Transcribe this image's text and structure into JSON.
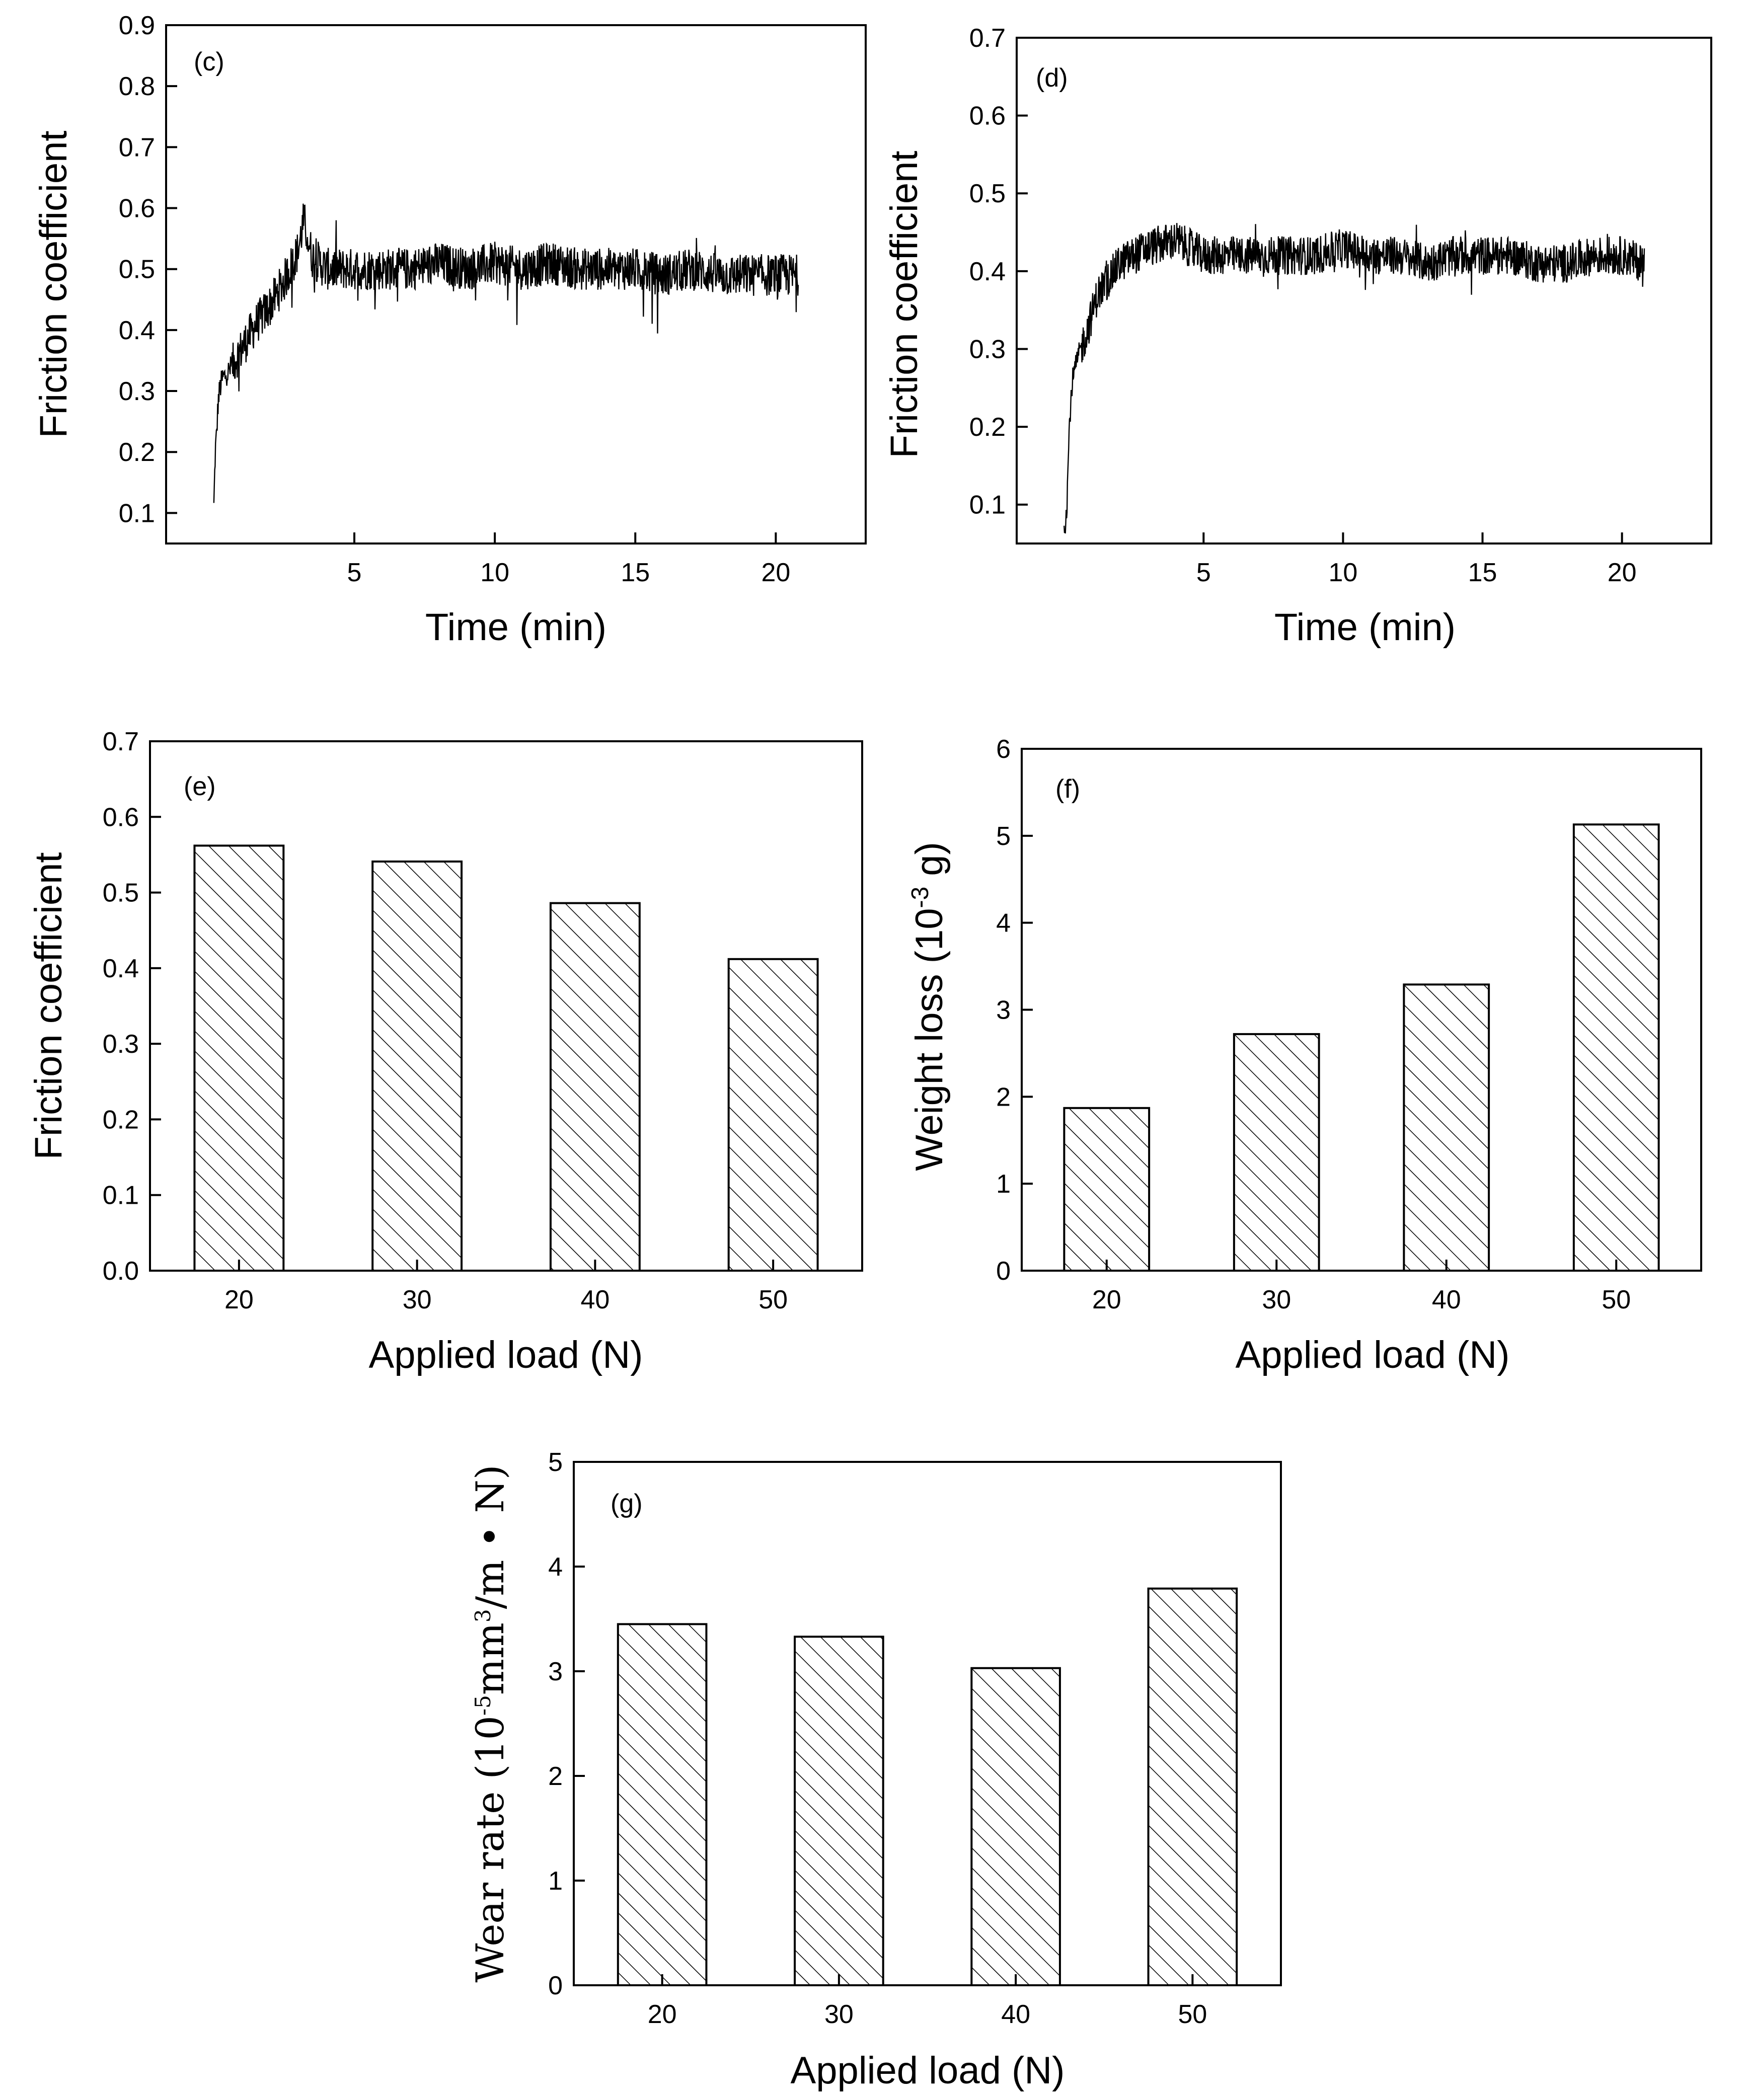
{
  "chart_data": [
    {
      "id": "c",
      "panel_label": "(c)",
      "type": "line",
      "xlabel": "Time (min)",
      "ylabel": "Friction coefficient",
      "xlim": [
        -1.7,
        23.2
      ],
      "ylim": [
        0.05,
        0.9
      ],
      "xticks": [
        5,
        10,
        15,
        20
      ],
      "yticks": [
        0.1,
        0.2,
        0.3,
        0.4,
        0.5,
        0.6,
        0.7,
        0.8,
        0.9
      ],
      "ytick_labels": [
        "0.1",
        "0.2",
        "0.3",
        "0.4",
        "0.5",
        "0.6",
        "0.7",
        "0.8",
        "0.9"
      ],
      "series": [
        {
          "name": "friction coefficient",
          "x": [
            0,
            0.05,
            0.1,
            0.15,
            0.2,
            0.3,
            0.5,
            1,
            1.5,
            2,
            2.5,
            3,
            3.2,
            3.5,
            4,
            5,
            6,
            7,
            8,
            9,
            10,
            11,
            12,
            13,
            14,
            15,
            16,
            17,
            18,
            19,
            20,
            20.8
          ],
          "y": [
            0.11,
            0.2,
            0.23,
            0.28,
            0.3,
            0.32,
            0.33,
            0.37,
            0.41,
            0.44,
            0.48,
            0.53,
            0.58,
            0.52,
            0.5,
            0.5,
            0.5,
            0.5,
            0.51,
            0.5,
            0.51,
            0.5,
            0.51,
            0.5,
            0.5,
            0.5,
            0.49,
            0.5,
            0.49,
            0.49,
            0.49,
            0.49
          ],
          "noise": 0.035
        }
      ]
    },
    {
      "id": "d",
      "panel_label": "(d)",
      "type": "line",
      "xlabel": "Time (min)",
      "ylabel": "Friction coefficient",
      "xlim": [
        -1.7,
        23.2
      ],
      "ylim": [
        0.05,
        0.7
      ],
      "xticks": [
        5,
        10,
        15,
        20
      ],
      "yticks": [
        0.1,
        0.2,
        0.3,
        0.4,
        0.5,
        0.6,
        0.7
      ],
      "ytick_labels": [
        "0.1",
        "0.2",
        "0.3",
        "0.4",
        "0.5",
        "0.6",
        "0.7"
      ],
      "series": [
        {
          "name": "friction coefficient",
          "x": [
            0,
            0.1,
            0.15,
            0.2,
            0.3,
            0.5,
            0.8,
            1.2,
            2,
            3,
            4,
            5,
            6,
            7,
            8,
            9,
            10,
            11,
            12,
            13,
            14,
            15,
            16,
            17,
            18,
            19,
            20,
            20.8
          ],
          "y": [
            0.06,
            0.1,
            0.16,
            0.21,
            0.26,
            0.29,
            0.32,
            0.37,
            0.41,
            0.43,
            0.44,
            0.42,
            0.42,
            0.42,
            0.42,
            0.42,
            0.43,
            0.42,
            0.42,
            0.41,
            0.42,
            0.42,
            0.42,
            0.41,
            0.41,
            0.42,
            0.42,
            0.41
          ],
          "noise": 0.025
        }
      ]
    },
    {
      "id": "e",
      "panel_label": "(e)",
      "type": "bar",
      "xlabel": "Applied load (N)",
      "ylabel": "Friction coefficient",
      "categories": [
        "20",
        "30",
        "40",
        "50"
      ],
      "values": [
        0.562,
        0.541,
        0.486,
        0.412
      ],
      "ylim": [
        0,
        0.7
      ],
      "yticks": [
        0,
        0.1,
        0.2,
        0.3,
        0.4,
        0.5,
        0.6,
        0.7
      ],
      "ytick_labels": [
        "0.0",
        "0.1",
        "0.2",
        "0.3",
        "0.4",
        "0.5",
        "0.6",
        "0.7"
      ]
    },
    {
      "id": "f",
      "panel_label": "(f)",
      "type": "bar",
      "xlabel": "Applied load (N)",
      "ylabel": "Weight loss (10",
      "ylabel_sup": "-3",
      "ylabel_end": " g)",
      "categories": [
        "20",
        "30",
        "40",
        "50"
      ],
      "values": [
        1.87,
        2.72,
        3.29,
        5.13
      ],
      "ylim": [
        0,
        6
      ],
      "yticks": [
        0,
        1,
        2,
        3,
        4,
        5,
        6
      ],
      "ytick_labels": [
        "0",
        "1",
        "2",
        "3",
        "4",
        "5",
        "6"
      ]
    },
    {
      "id": "g",
      "panel_label": "(g)",
      "type": "bar",
      "xlabel": "Applied load (N)",
      "ylabel": "Wear rate (10",
      "ylabel_sup": "-5",
      "ylabel_mid": "mm",
      "ylabel_sup2": "3",
      "ylabel_end": "/m • N)",
      "categories": [
        "20",
        "30",
        "40",
        "50"
      ],
      "values": [
        3.45,
        3.33,
        3.03,
        3.79
      ],
      "ylim": [
        0,
        5
      ],
      "yticks": [
        0,
        1,
        2,
        3,
        4,
        5
      ],
      "ytick_labels": [
        "0",
        "1",
        "2",
        "3",
        "4",
        "5"
      ]
    }
  ]
}
